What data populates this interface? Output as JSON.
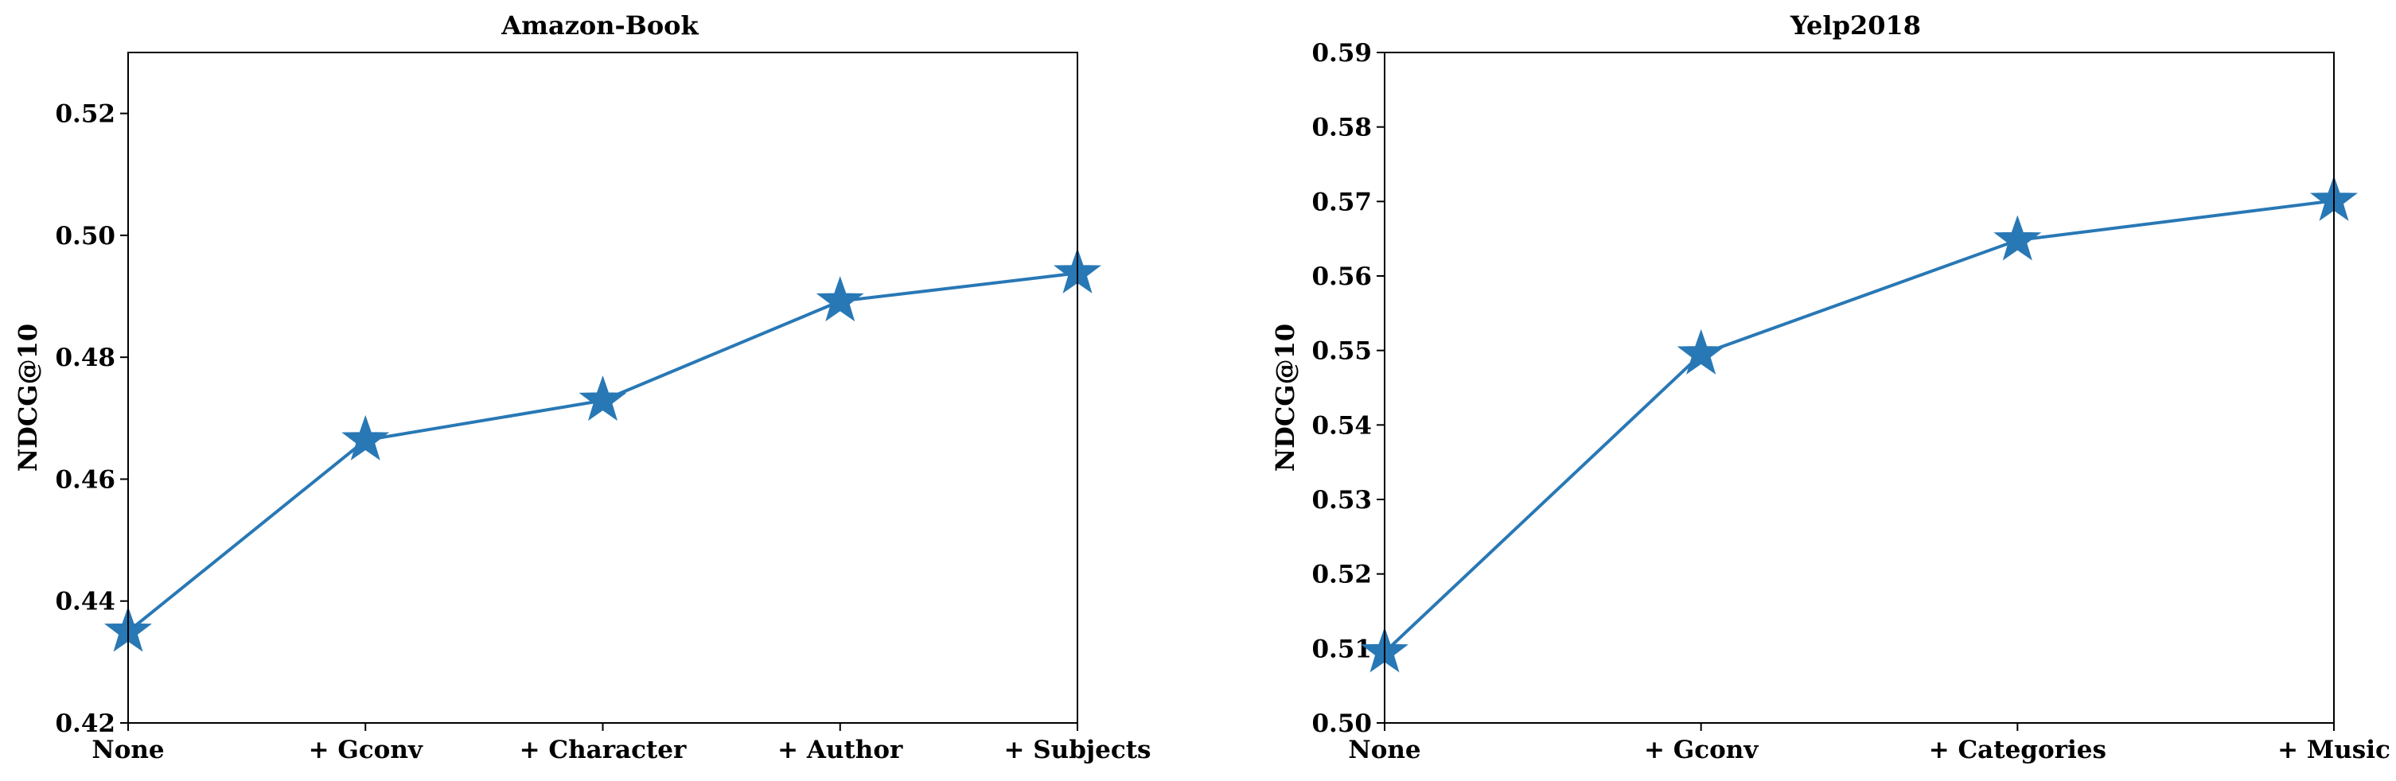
{
  "chart_data": [
    {
      "type": "line",
      "title": "Amazon-Book",
      "xlabel": "",
      "ylabel": "NDCG@10",
      "categories": [
        "None",
        "+ Gconv",
        "+ Character",
        "+ Author",
        "+ Subjects"
      ],
      "series": [
        {
          "values": [
            0.435,
            0.4664,
            0.4729,
            0.4892,
            0.4938
          ],
          "color": "#2878b5",
          "marker": "star"
        }
      ],
      "ylim": [
        0.42,
        0.53
      ],
      "yticks": [
        "0.42",
        "0.44",
        "0.46",
        "0.48",
        "0.50",
        "0.52"
      ],
      "grid": false,
      "legend": "none"
    },
    {
      "type": "line",
      "title": "Yelp2018",
      "xlabel": "",
      "ylabel": "NDCG@10",
      "categories": [
        "None",
        "+ Gconv",
        "+ Categories",
        "+ Music"
      ],
      "series": [
        {
          "values": [
            0.5095,
            0.5495,
            0.5648,
            0.5701
          ],
          "color": "#2878b5",
          "marker": "star"
        }
      ],
      "ylim": [
        0.5,
        0.59
      ],
      "yticks": [
        "0.50",
        "0.51",
        "0.52",
        "0.53",
        "0.54",
        "0.55",
        "0.56",
        "0.57",
        "0.58",
        "0.59"
      ],
      "grid": false,
      "legend": "none"
    }
  ]
}
